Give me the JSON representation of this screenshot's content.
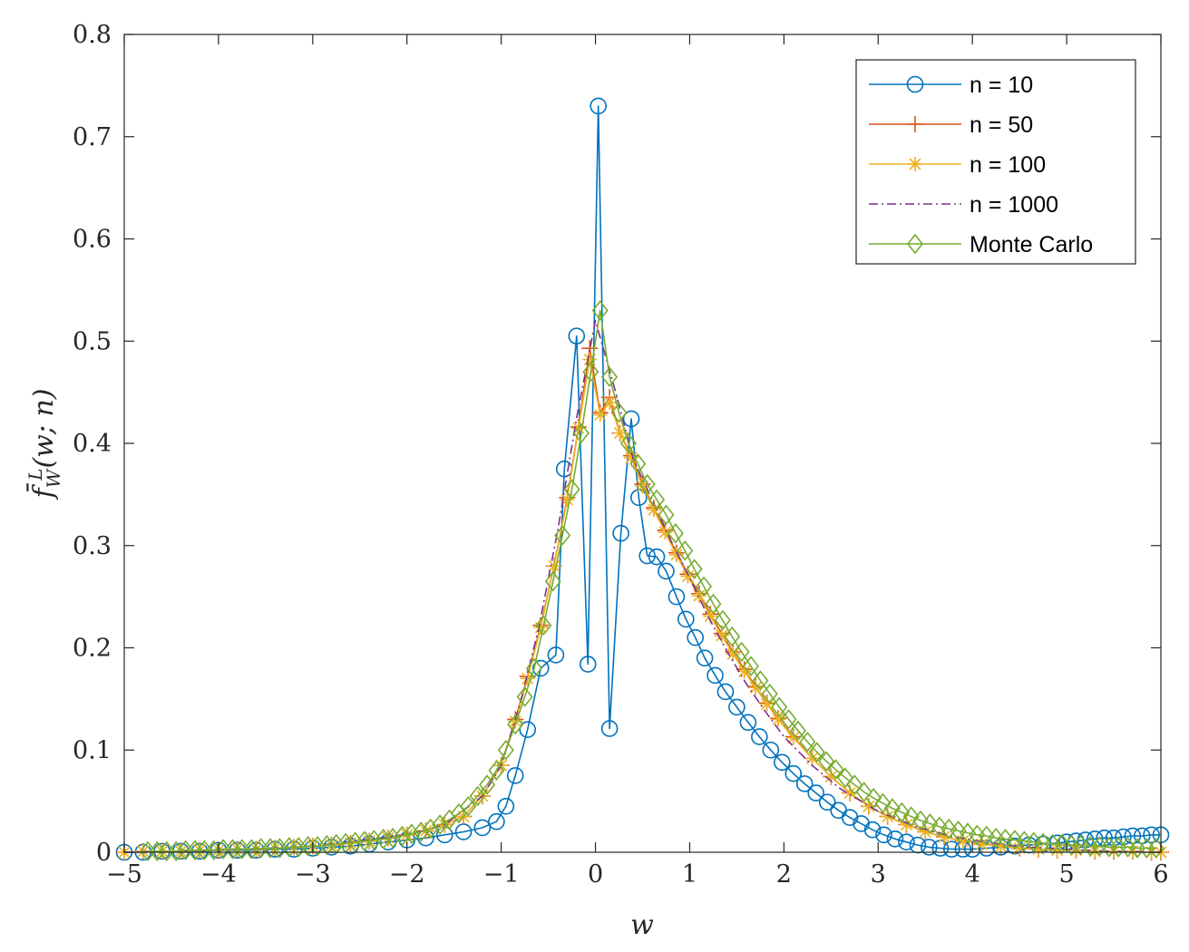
{
  "chart_data": {
    "type": "line",
    "title": "",
    "xlabel": "w",
    "ylabel": "f̄",
    "ylabel_sup": "L",
    "ylabel_sub": "W",
    "ylabel_rest": "(w; n)",
    "xlim": [
      -5,
      6
    ],
    "ylim": [
      0,
      0.8
    ],
    "xticks": [
      -5,
      -4,
      -3,
      -2,
      -1,
      0,
      1,
      2,
      3,
      4,
      5,
      6
    ],
    "xtick_labels": [
      "−5",
      "−4",
      "−3",
      "−2",
      "−1",
      "0",
      "1",
      "2",
      "3",
      "4",
      "5",
      "6"
    ],
    "yticks": [
      0,
      0.1,
      0.2,
      0.3,
      0.4,
      0.5,
      0.6,
      0.7,
      0.8
    ],
    "ytick_labels": [
      "0",
      "0.1",
      "0.2",
      "0.3",
      "0.4",
      "0.5",
      "0.6",
      "0.7",
      "0.8"
    ],
    "grid": false,
    "legend_position": "top-right",
    "series": [
      {
        "name": "n = 10",
        "color": "#0072BD",
        "marker": "circle",
        "line": "solid",
        "x": [
          -5.0,
          -4.8,
          -4.6,
          -4.4,
          -4.2,
          -4.0,
          -3.8,
          -3.6,
          -3.4,
          -3.2,
          -3.0,
          -2.8,
          -2.6,
          -2.4,
          -2.2,
          -2.0,
          -1.8,
          -1.6,
          -1.4,
          -1.2,
          -1.05,
          -0.95,
          -0.85,
          -0.72,
          -0.58,
          -0.42,
          -0.33,
          -0.2,
          -0.08,
          0.03,
          0.15,
          0.27,
          0.38,
          0.46,
          0.55,
          0.65,
          0.75,
          0.86,
          0.96,
          1.06,
          1.16,
          1.27,
          1.38,
          1.5,
          1.62,
          1.74,
          1.86,
          1.98,
          2.1,
          2.22,
          2.34,
          2.46,
          2.58,
          2.7,
          2.82,
          2.94,
          3.06,
          3.18,
          3.3,
          3.42,
          3.54,
          3.66,
          3.78,
          3.9,
          4.0,
          4.15,
          4.3,
          4.45,
          4.6,
          4.75,
          4.9,
          5.0,
          5.1,
          5.2,
          5.3,
          5.4,
          5.5,
          5.6,
          5.7,
          5.8,
          5.9,
          6.0
        ],
        "y": [
          0.0,
          0.0,
          0.001,
          0.001,
          0.001,
          0.002,
          0.002,
          0.002,
          0.003,
          0.003,
          0.004,
          0.005,
          0.006,
          0.008,
          0.01,
          0.012,
          0.014,
          0.017,
          0.02,
          0.024,
          0.03,
          0.045,
          0.075,
          0.12,
          0.18,
          0.193,
          0.375,
          0.505,
          0.184,
          0.73,
          0.121,
          0.312,
          0.424,
          0.347,
          0.29,
          0.289,
          0.275,
          0.25,
          0.228,
          0.21,
          0.19,
          0.173,
          0.157,
          0.142,
          0.127,
          0.113,
          0.1,
          0.088,
          0.077,
          0.067,
          0.058,
          0.049,
          0.041,
          0.034,
          0.028,
          0.022,
          0.017,
          0.013,
          0.01,
          0.007,
          0.005,
          0.004,
          0.003,
          0.003,
          0.003,
          0.004,
          0.005,
          0.006,
          0.007,
          0.008,
          0.009,
          0.01,
          0.011,
          0.012,
          0.013,
          0.014,
          0.014,
          0.015,
          0.016,
          0.016,
          0.017,
          0.017
        ]
      },
      {
        "name": "n = 50",
        "color": "#D95319",
        "marker": "plus",
        "line": "solid",
        "x": [
          -5.0,
          -4.8,
          -4.6,
          -4.4,
          -4.2,
          -4.0,
          -3.8,
          -3.6,
          -3.4,
          -3.2,
          -3.0,
          -2.8,
          -2.6,
          -2.4,
          -2.2,
          -2.0,
          -1.8,
          -1.6,
          -1.4,
          -1.2,
          -1.0,
          -0.85,
          -0.72,
          -0.58,
          -0.44,
          -0.3,
          -0.18,
          -0.06,
          0.05,
          0.15,
          0.26,
          0.38,
          0.5,
          0.62,
          0.74,
          0.86,
          0.98,
          1.1,
          1.22,
          1.34,
          1.46,
          1.58,
          1.7,
          1.82,
          1.94,
          2.1,
          2.3,
          2.5,
          2.7,
          2.9,
          3.1,
          3.3,
          3.5,
          3.7,
          3.9,
          4.1,
          4.3,
          4.5,
          4.7,
          4.9,
          5.1,
          5.3,
          5.5,
          5.7,
          5.9,
          6.0
        ],
        "y": [
          0.0,
          0.001,
          0.001,
          0.001,
          0.002,
          0.002,
          0.003,
          0.003,
          0.004,
          0.005,
          0.006,
          0.007,
          0.009,
          0.011,
          0.014,
          0.017,
          0.021,
          0.027,
          0.035,
          0.055,
          0.085,
          0.13,
          0.172,
          0.222,
          0.28,
          0.347,
          0.416,
          0.493,
          0.43,
          0.445,
          0.41,
          0.388,
          0.36,
          0.337,
          0.315,
          0.293,
          0.272,
          0.253,
          0.233,
          0.214,
          0.196,
          0.179,
          0.162,
          0.146,
          0.131,
          0.113,
          0.092,
          0.074,
          0.058,
          0.045,
          0.035,
          0.027,
          0.02,
          0.015,
          0.011,
          0.008,
          0.006,
          0.004,
          0.003,
          0.002,
          0.002,
          0.001,
          0.001,
          0.001,
          0.0,
          0.0
        ]
      },
      {
        "name": "n = 100",
        "color": "#EDB120",
        "marker": "asterisk",
        "line": "solid",
        "x": [
          -5.0,
          -4.8,
          -4.6,
          -4.4,
          -4.2,
          -4.0,
          -3.8,
          -3.6,
          -3.4,
          -3.2,
          -3.0,
          -2.8,
          -2.6,
          -2.4,
          -2.2,
          -2.0,
          -1.8,
          -1.6,
          -1.4,
          -1.2,
          -1.0,
          -0.85,
          -0.72,
          -0.58,
          -0.44,
          -0.3,
          -0.18,
          -0.06,
          0.05,
          0.15,
          0.26,
          0.38,
          0.5,
          0.62,
          0.74,
          0.86,
          0.98,
          1.1,
          1.22,
          1.34,
          1.46,
          1.58,
          1.7,
          1.82,
          1.94,
          2.1,
          2.3,
          2.5,
          2.7,
          2.9,
          3.1,
          3.3,
          3.5,
          3.7,
          3.9,
          4.1,
          4.3,
          4.5,
          4.7,
          4.9,
          5.1,
          5.3,
          5.5,
          5.7,
          5.9,
          6.0
        ],
        "y": [
          0.0,
          0.001,
          0.001,
          0.001,
          0.002,
          0.002,
          0.003,
          0.003,
          0.004,
          0.005,
          0.006,
          0.007,
          0.009,
          0.011,
          0.014,
          0.017,
          0.021,
          0.027,
          0.035,
          0.055,
          0.085,
          0.128,
          0.17,
          0.22,
          0.28,
          0.345,
          0.415,
          0.482,
          0.428,
          0.44,
          0.41,
          0.386,
          0.358,
          0.335,
          0.313,
          0.291,
          0.27,
          0.251,
          0.231,
          0.212,
          0.194,
          0.177,
          0.161,
          0.145,
          0.13,
          0.112,
          0.092,
          0.074,
          0.058,
          0.045,
          0.035,
          0.027,
          0.02,
          0.015,
          0.011,
          0.008,
          0.006,
          0.004,
          0.003,
          0.002,
          0.002,
          0.001,
          0.001,
          0.001,
          0.0,
          0.0
        ]
      },
      {
        "name": "n = 1000",
        "color": "#7E2F8E",
        "marker": "none",
        "line": "dashdot",
        "x": [
          -5.0,
          -4.0,
          -3.0,
          -2.0,
          -1.6,
          -1.2,
          -1.0,
          -0.8,
          -0.6,
          -0.4,
          -0.2,
          0.0,
          0.2,
          0.4,
          0.6,
          0.8,
          1.0,
          1.2,
          1.4,
          1.6,
          1.8,
          2.0,
          2.3,
          2.6,
          3.0,
          3.4,
          3.8,
          4.2,
          4.6,
          5.0,
          5.5,
          6.0
        ],
        "y": [
          0.0,
          0.002,
          0.006,
          0.017,
          0.027,
          0.055,
          0.085,
          0.145,
          0.22,
          0.315,
          0.425,
          0.52,
          0.455,
          0.385,
          0.345,
          0.305,
          0.268,
          0.23,
          0.196,
          0.165,
          0.138,
          0.113,
          0.085,
          0.062,
          0.04,
          0.025,
          0.015,
          0.009,
          0.005,
          0.003,
          0.001,
          0.0
        ]
      },
      {
        "name": "Monte Carlo",
        "color": "#77AC30",
        "marker": "diamond",
        "line": "solid",
        "x": [
          -4.75,
          -4.65,
          -4.55,
          -4.45,
          -4.35,
          -4.25,
          -4.15,
          -4.05,
          -3.95,
          -3.85,
          -3.75,
          -3.65,
          -3.55,
          -3.45,
          -3.35,
          -3.25,
          -3.15,
          -3.05,
          -2.95,
          -2.85,
          -2.75,
          -2.65,
          -2.55,
          -2.45,
          -2.35,
          -2.25,
          -2.15,
          -2.05,
          -1.95,
          -1.85,
          -1.75,
          -1.65,
          -1.55,
          -1.45,
          -1.35,
          -1.25,
          -1.15,
          -1.05,
          -0.95,
          -0.85,
          -0.75,
          -0.65,
          -0.55,
          -0.45,
          -0.35,
          -0.25,
          -0.15,
          -0.05,
          0.05,
          0.15,
          0.25,
          0.35,
          0.45,
          0.55,
          0.65,
          0.75,
          0.85,
          0.95,
          1.05,
          1.15,
          1.25,
          1.35,
          1.45,
          1.55,
          1.65,
          1.75,
          1.85,
          1.95,
          2.05,
          2.15,
          2.25,
          2.35,
          2.45,
          2.55,
          2.65,
          2.75,
          2.85,
          2.95,
          3.05,
          3.15,
          3.25,
          3.35,
          3.45,
          3.55,
          3.65,
          3.75,
          3.85,
          3.95,
          4.05,
          4.15,
          4.25,
          4.35,
          4.45,
          4.55,
          4.65,
          4.75,
          4.85,
          4.95,
          5.05,
          5.15,
          5.25,
          5.35,
          5.45,
          5.55,
          5.65,
          5.75,
          5.85,
          5.95
        ],
        "y": [
          0.001,
          0.001,
          0.001,
          0.001,
          0.002,
          0.002,
          0.002,
          0.002,
          0.003,
          0.003,
          0.003,
          0.003,
          0.004,
          0.004,
          0.004,
          0.005,
          0.005,
          0.006,
          0.006,
          0.007,
          0.008,
          0.009,
          0.01,
          0.011,
          0.012,
          0.013,
          0.014,
          0.016,
          0.018,
          0.02,
          0.023,
          0.027,
          0.032,
          0.038,
          0.045,
          0.055,
          0.066,
          0.08,
          0.1,
          0.125,
          0.152,
          0.18,
          0.222,
          0.265,
          0.31,
          0.355,
          0.41,
          0.47,
          0.53,
          0.465,
          0.43,
          0.4,
          0.38,
          0.36,
          0.345,
          0.33,
          0.312,
          0.295,
          0.277,
          0.26,
          0.243,
          0.227,
          0.211,
          0.196,
          0.182,
          0.168,
          0.155,
          0.142,
          0.13,
          0.119,
          0.108,
          0.098,
          0.089,
          0.081,
          0.073,
          0.066,
          0.059,
          0.053,
          0.048,
          0.043,
          0.039,
          0.035,
          0.031,
          0.028,
          0.025,
          0.023,
          0.021,
          0.019,
          0.017,
          0.016,
          0.014,
          0.013,
          0.012,
          0.011,
          0.01,
          0.009,
          0.008,
          0.008,
          0.007,
          0.007,
          0.006,
          0.006,
          0.005,
          0.005,
          0.005,
          0.004,
          0.004,
          0.004
        ]
      }
    ]
  }
}
